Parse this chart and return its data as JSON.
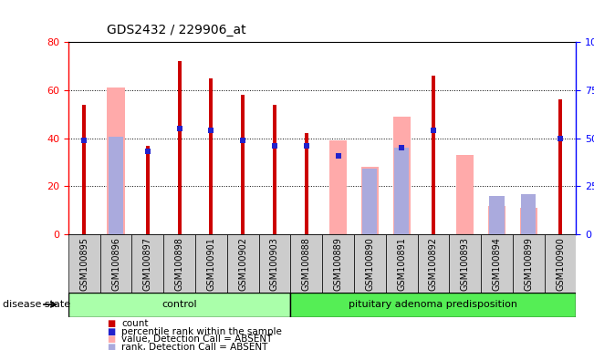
{
  "title": "GDS2432 / 229906_at",
  "samples": [
    "GSM100895",
    "GSM100896",
    "GSM100897",
    "GSM100898",
    "GSM100901",
    "GSM100902",
    "GSM100903",
    "GSM100888",
    "GSM100889",
    "GSM100890",
    "GSM100891",
    "GSM100892",
    "GSM100893",
    "GSM100894",
    "GSM100899",
    "GSM100900"
  ],
  "count": [
    54,
    0,
    37,
    72,
    65,
    58,
    54,
    42,
    0,
    0,
    0,
    66,
    0,
    0,
    0,
    56
  ],
  "percentile_rank": [
    49,
    0,
    43,
    55,
    54,
    49,
    46,
    46,
    41,
    0,
    45,
    54,
    0,
    0,
    0,
    50
  ],
  "value_absent": [
    0,
    61,
    0,
    0,
    0,
    0,
    0,
    0,
    39,
    28,
    49,
    0,
    33,
    12,
    11,
    0
  ],
  "rank_absent": [
    0,
    51,
    0,
    0,
    0,
    0,
    0,
    0,
    0,
    34,
    45,
    0,
    0,
    20,
    21,
    0
  ],
  "n_control": 7,
  "n_pituitary": 9,
  "color_count": "#cc0000",
  "color_percentile": "#2222cc",
  "color_value_absent": "#ffaaaa",
  "color_rank_absent": "#aaaadd",
  "color_control_bg": "#aaffaa",
  "color_pituitary_bg": "#55ee55",
  "ylim_left": [
    0,
    80
  ],
  "ylim_right": [
    0,
    100
  ],
  "disease_state_label": "disease state",
  "control_label": "control",
  "pituitary_label": "pituitary adenoma predisposition",
  "legend_items": [
    "count",
    "percentile rank within the sample",
    "value, Detection Call = ABSENT",
    "rank, Detection Call = ABSENT"
  ],
  "bg_color": "#ffffff",
  "tick_area_color": "#cccccc"
}
